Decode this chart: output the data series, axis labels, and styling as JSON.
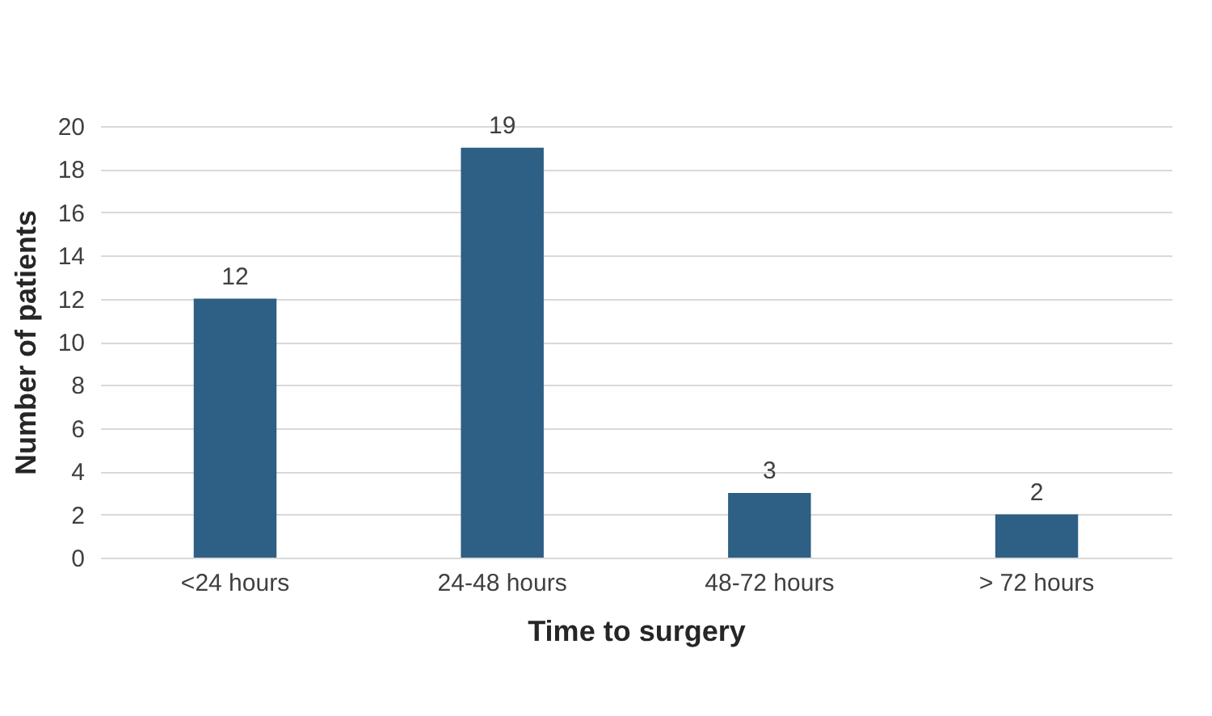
{
  "chart_data": {
    "type": "bar",
    "xlabel": "Time to surgery",
    "ylabel": "Number of patients",
    "categories": [
      "<24 hours",
      "24-48 hours",
      "48-72 hours",
      "> 72 hours"
    ],
    "values": [
      12,
      19,
      3,
      2
    ],
    "color": "#2e5f84",
    "ylim": [
      0,
      20
    ],
    "yticks": [
      0,
      2,
      4,
      6,
      8,
      10,
      12,
      14,
      16,
      18,
      20
    ],
    "grid": "y",
    "data_labels": true
  }
}
